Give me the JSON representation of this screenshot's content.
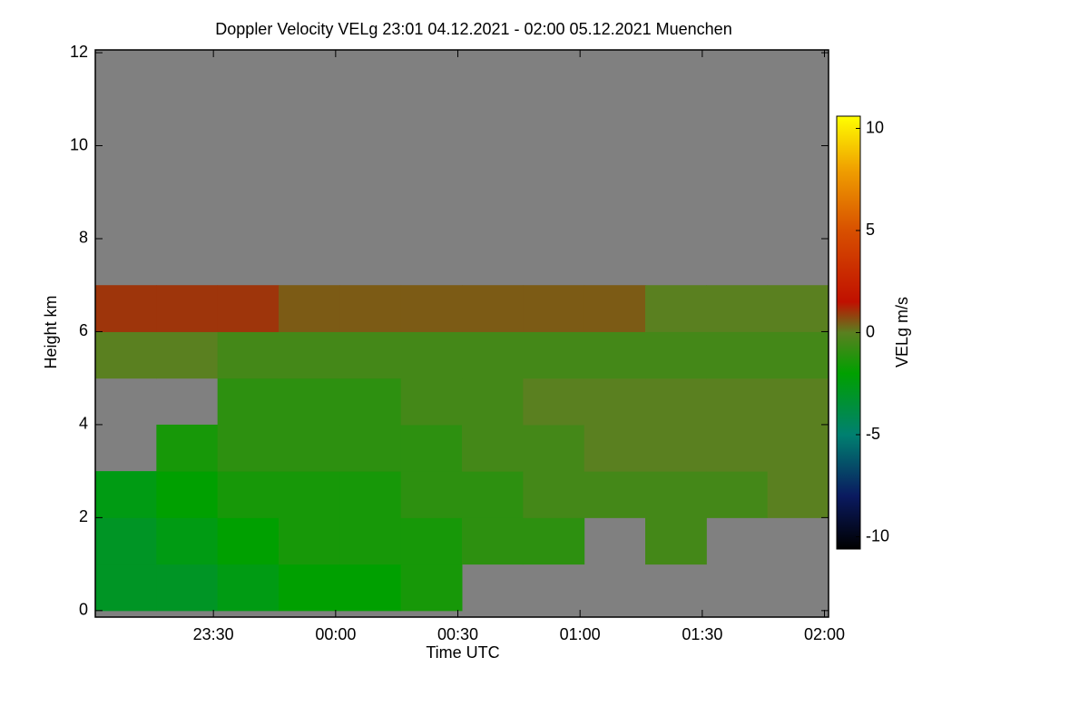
{
  "chart_data": {
    "type": "heatmap",
    "title": "Doppler Velocity VELg   23:01 04.12.2021 - 02:00 05.12.2021 Muenchen",
    "x_label": "Time UTC",
    "y_label": "Height km",
    "colorbar_label": "VELg m/s",
    "xlim": [
      -59,
      121
    ],
    "xticks": [
      {
        "value": -30,
        "label": "23:30"
      },
      {
        "value": 0,
        "label": "00:00"
      },
      {
        "value": 30,
        "label": "00:30"
      },
      {
        "value": 60,
        "label": "01:00"
      },
      {
        "value": 90,
        "label": "01:30"
      },
      {
        "value": 120,
        "label": "02:00"
      }
    ],
    "ylim": [
      -0.14,
      12.06
    ],
    "yticks": [
      0,
      2,
      4,
      6,
      8,
      10,
      12
    ],
    "zlim": [
      -10.6,
      10.6
    ],
    "zticks": [
      -10,
      -5,
      0,
      5,
      10
    ],
    "xbins": [
      -59,
      -44,
      -29,
      -14,
      1,
      16,
      31,
      46,
      61,
      76,
      91,
      106,
      121
    ],
    "ybins": [
      0,
      1,
      2,
      3,
      4,
      5,
      6,
      7,
      8,
      9,
      10,
      11,
      12
    ],
    "z": [
      [
        -3,
        -3,
        -2.5,
        -2,
        -2,
        -1.5,
        null,
        null,
        null,
        null,
        null,
        null
      ],
      [
        -3,
        -2.5,
        -2,
        -1.5,
        -1.5,
        -1.5,
        -1,
        -1,
        null,
        -0.5,
        null,
        null
      ],
      [
        -2.5,
        -2,
        -1.5,
        -1.5,
        -1.5,
        -1,
        -1,
        -0.5,
        -0.5,
        -0.5,
        -0.5,
        0
      ],
      [
        null,
        -1.5,
        -1,
        -1,
        -1,
        -1,
        -0.5,
        -0.5,
        0,
        0,
        0,
        0
      ],
      [
        null,
        null,
        -1,
        -1,
        -1,
        -0.5,
        -0.5,
        0,
        0,
        0,
        0,
        0
      ],
      [
        0,
        0,
        -0.5,
        -0.5,
        -0.5,
        -0.5,
        -0.5,
        -0.5,
        -0.5,
        -0.5,
        -0.5,
        -0.5
      ],
      [
        1,
        1,
        1,
        0.5,
        0.5,
        0.5,
        0.5,
        0.5,
        0.5,
        0,
        0,
        0
      ],
      [
        null,
        null,
        null,
        null,
        null,
        null,
        null,
        null,
        null,
        null,
        null,
        null
      ],
      [
        null,
        null,
        null,
        null,
        null,
        null,
        null,
        null,
        null,
        null,
        null,
        null
      ],
      [
        null,
        null,
        null,
        null,
        null,
        null,
        null,
        null,
        null,
        null,
        null,
        null
      ],
      [
        null,
        null,
        null,
        null,
        null,
        null,
        null,
        null,
        null,
        null,
        null,
        null
      ],
      [
        null,
        null,
        null,
        null,
        null,
        null,
        null,
        null,
        null,
        null,
        null,
        null
      ]
    ],
    "missing_color": "#808080",
    "colormap": [
      [
        -10.6,
        "#000000"
      ],
      [
        -8,
        "#0a1a60"
      ],
      [
        -5,
        "#008070"
      ],
      [
        -2,
        "#00a000"
      ],
      [
        0,
        "#5a8020"
      ],
      [
        1.5,
        "#c01000"
      ],
      [
        5,
        "#d85000"
      ],
      [
        8,
        "#f0a000"
      ],
      [
        10.6,
        "#ffff00"
      ]
    ]
  }
}
